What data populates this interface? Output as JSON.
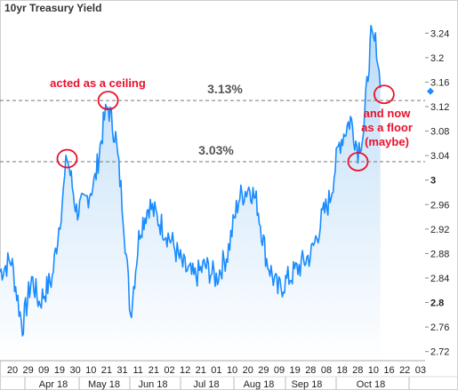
{
  "chart_data": {
    "type": "area",
    "title": "10yr Treasury Yield",
    "x_start": "2018-03-20",
    "x_end": "2018-11-03",
    "x_tick_labels": [
      "20",
      "29",
      "09",
      "19",
      "30",
      "10",
      "21",
      "31",
      "11",
      "21",
      "02",
      "12",
      "21",
      "01",
      "10",
      "20",
      "29",
      "09",
      "19",
      "28",
      "08",
      "18",
      "28",
      "10",
      "16",
      "22",
      "03"
    ],
    "month_labels": [
      "Apr 18",
      "May 18",
      "Jun 18",
      "Jul 18",
      "Aug 18",
      "Sep 18",
      "Oct 18"
    ],
    "y_ticks": [
      2.72,
      2.76,
      2.8,
      2.84,
      2.88,
      2.92,
      2.96,
      3,
      3.04,
      3.08,
      3.12,
      3.16,
      3.2,
      3.24
    ],
    "y_tick_labels": [
      "2.72",
      "2.76",
      "2.8",
      "2.84",
      "2.88",
      "2.92",
      "2.96",
      "3",
      "3.04",
      "3.08",
      "3.12",
      "3.16",
      "3.2",
      "3.24"
    ],
    "ylim": [
      2.705,
      3.268
    ],
    "x": [
      "2018-03-20",
      "2018-03-26",
      "2018-04-01",
      "2018-04-06",
      "2018-04-10",
      "2018-04-17",
      "2018-04-23",
      "2018-04-25",
      "2018-04-30",
      "2018-05-04",
      "2018-05-10",
      "2018-05-15",
      "2018-05-17",
      "2018-05-21",
      "2018-05-25",
      "2018-05-29",
      "2018-06-03",
      "2018-06-08",
      "2018-06-14",
      "2018-06-20",
      "2018-06-26",
      "2018-07-02",
      "2018-07-08",
      "2018-07-14",
      "2018-07-20",
      "2018-07-26",
      "2018-08-01",
      "2018-08-05",
      "2018-08-10",
      "2018-08-16",
      "2018-08-22",
      "2018-08-28",
      "2018-09-03",
      "2018-09-09",
      "2018-09-13",
      "2018-09-18",
      "2018-09-24",
      "2018-09-28",
      "2018-10-01",
      "2018-10-04",
      "2018-10-05",
      "2018-10-08",
      "2018-10-10"
    ],
    "values": [
      2.85,
      2.87,
      2.76,
      2.84,
      2.8,
      2.84,
      2.98,
      3.04,
      2.95,
      2.96,
      3.0,
      3.1,
      3.12,
      3.07,
      2.95,
      2.78,
      2.92,
      2.96,
      2.93,
      2.9,
      2.86,
      2.84,
      2.86,
      2.84,
      2.88,
      2.97,
      2.99,
      2.96,
      2.87,
      2.82,
      2.84,
      2.86,
      2.88,
      2.94,
      2.97,
      3.06,
      3.1,
      3.05,
      3.08,
      3.2,
      3.23,
      3.22,
      3.15
    ],
    "last_value": 3.145,
    "reference_lines": [
      {
        "label": "3.13%",
        "value": 3.13
      },
      {
        "label": "3.03%",
        "value": 3.03
      }
    ],
    "annotations": [
      {
        "text": "acted as a ceiling",
        "x": "2018-05-17",
        "y": 3.13
      },
      {
        "text": "and now as a floor (maybe)",
        "x": "2018-10-12",
        "y": 3.14
      },
      {
        "text": "",
        "x": "2018-04-25",
        "y": 3.035
      },
      {
        "text": "",
        "x": "2018-09-28",
        "y": 3.03
      }
    ],
    "colors": {
      "line": "#1a8cff",
      "fill_top": "#bcdcf7",
      "fill_bottom": "#ffffff",
      "ref_line": "#777777",
      "annotation": "#e8112d",
      "last_marker": "#1a8cff"
    }
  }
}
